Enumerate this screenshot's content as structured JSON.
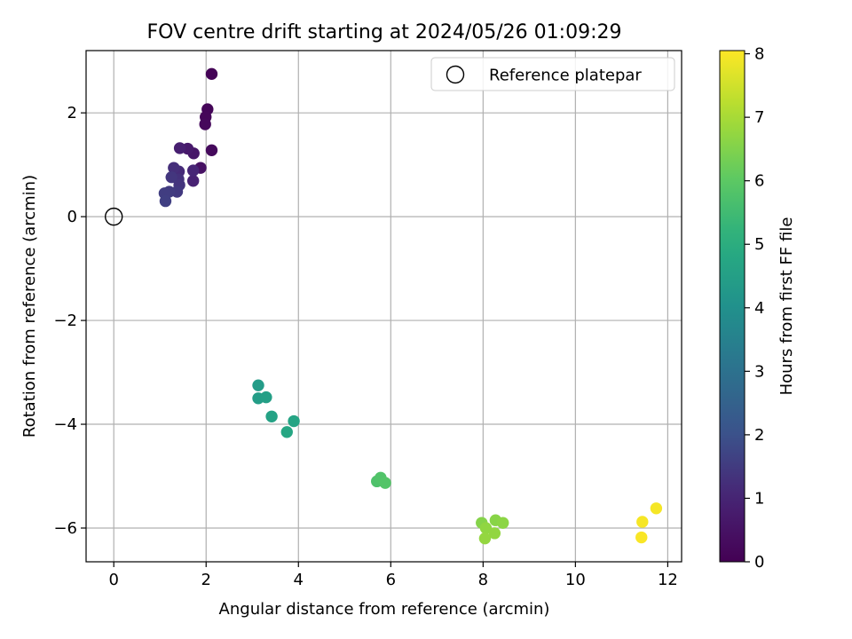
{
  "chart_data": {
    "type": "scatter",
    "title": "FOV centre drift starting at 2024/05/26 01:09:29",
    "xlabel": "Angular distance from reference (arcmin)",
    "ylabel": "Rotation from reference (arcmin)",
    "xlim": [
      -0.6,
      12.3
    ],
    "ylim": [
      -6.65,
      3.2
    ],
    "xticks": [
      0,
      2,
      4,
      6,
      8,
      10,
      12
    ],
    "yticks": [
      -6,
      -4,
      -2,
      0,
      2
    ],
    "grid": true,
    "legend": {
      "position": "top-right",
      "entries": [
        "Reference platepar"
      ]
    },
    "reference_point": {
      "x": 0,
      "y": 0,
      "label": "Reference platepar"
    },
    "colorbar": {
      "label": "Hours from first FF file",
      "colormap": "viridis",
      "range": [
        0,
        8.05
      ],
      "ticks": [
        0,
        1,
        2,
        3,
        4,
        5,
        6,
        7,
        8
      ]
    },
    "points": [
      {
        "x": 2.12,
        "y": 2.75,
        "c": 0.05
      },
      {
        "x": 2.03,
        "y": 2.07,
        "c": 0.12
      },
      {
        "x": 1.99,
        "y": 1.92,
        "c": 0.15
      },
      {
        "x": 1.98,
        "y": 1.78,
        "c": 0.2
      },
      {
        "x": 2.12,
        "y": 1.28,
        "c": 0.25
      },
      {
        "x": 1.88,
        "y": 0.94,
        "c": 0.45
      },
      {
        "x": 1.73,
        "y": 1.22,
        "c": 0.6
      },
      {
        "x": 1.6,
        "y": 1.31,
        "c": 0.7
      },
      {
        "x": 1.43,
        "y": 1.32,
        "c": 0.85
      },
      {
        "x": 1.72,
        "y": 0.69,
        "c": 0.95
      },
      {
        "x": 1.72,
        "y": 0.89,
        "c": 1.05
      },
      {
        "x": 1.41,
        "y": 0.87,
        "c": 1.15
      },
      {
        "x": 1.3,
        "y": 0.94,
        "c": 1.25
      },
      {
        "x": 1.4,
        "y": 0.72,
        "c": 1.3
      },
      {
        "x": 1.42,
        "y": 0.61,
        "c": 1.35
      },
      {
        "x": 1.25,
        "y": 0.76,
        "c": 1.4
      },
      {
        "x": 1.37,
        "y": 0.48,
        "c": 1.45
      },
      {
        "x": 1.2,
        "y": 0.48,
        "c": 1.5
      },
      {
        "x": 1.1,
        "y": 0.45,
        "c": 1.55
      },
      {
        "x": 1.12,
        "y": 0.3,
        "c": 1.6
      },
      {
        "x": 3.13,
        "y": -3.25,
        "c": 4.4
      },
      {
        "x": 3.13,
        "y": -3.5,
        "c": 4.45
      },
      {
        "x": 3.3,
        "y": -3.48,
        "c": 4.5
      },
      {
        "x": 3.42,
        "y": -3.85,
        "c": 4.6
      },
      {
        "x": 3.9,
        "y": -3.94,
        "c": 4.7
      },
      {
        "x": 3.75,
        "y": -4.15,
        "c": 4.75
      },
      {
        "x": 5.7,
        "y": -5.1,
        "c": 5.75
      },
      {
        "x": 5.78,
        "y": -5.03,
        "c": 5.8
      },
      {
        "x": 5.88,
        "y": -5.13,
        "c": 5.85
      },
      {
        "x": 7.97,
        "y": -5.9,
        "c": 6.55
      },
      {
        "x": 8.27,
        "y": -5.85,
        "c": 6.6
      },
      {
        "x": 8.43,
        "y": -5.9,
        "c": 6.65
      },
      {
        "x": 8.06,
        "y": -6.0,
        "c": 6.7
      },
      {
        "x": 8.25,
        "y": -6.1,
        "c": 6.72
      },
      {
        "x": 8.04,
        "y": -6.2,
        "c": 6.75
      },
      {
        "x": 11.75,
        "y": -5.62,
        "c": 7.95
      },
      {
        "x": 11.45,
        "y": -5.88,
        "c": 7.97
      },
      {
        "x": 11.43,
        "y": -6.18,
        "c": 8.0
      }
    ]
  }
}
